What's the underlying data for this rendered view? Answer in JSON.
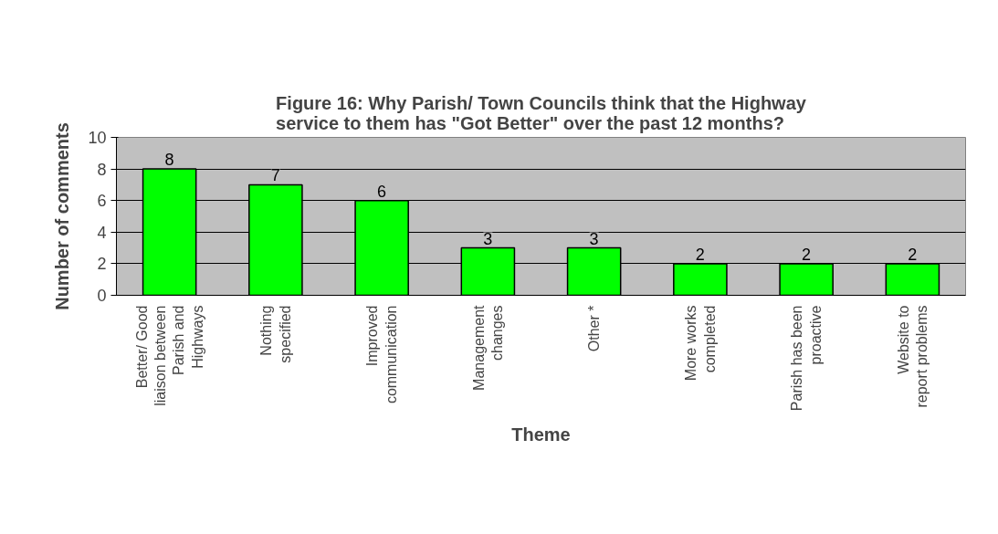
{
  "chart_data": {
    "type": "bar",
    "title": "Figure 16: Why Parish/ Town Councils think that the Highway service to them has \"Got Better\" over the past 12 months?",
    "xlabel": "Theme",
    "ylabel": "Number of comments",
    "categories": [
      "Better/ Good liaison between Parish and Highways",
      "Nothing specified",
      "Improved communication",
      "Management changes",
      "Other *",
      "More works completed",
      "Parish has been proactive",
      "Website to report problems"
    ],
    "values": [
      8,
      7,
      6,
      3,
      3,
      2,
      2,
      2
    ],
    "color": "#00ff00",
    "ylim": [
      0,
      10
    ],
    "yticks": [
      0,
      2,
      4,
      6,
      8,
      10
    ],
    "grid": "y",
    "data_labels": true
  }
}
